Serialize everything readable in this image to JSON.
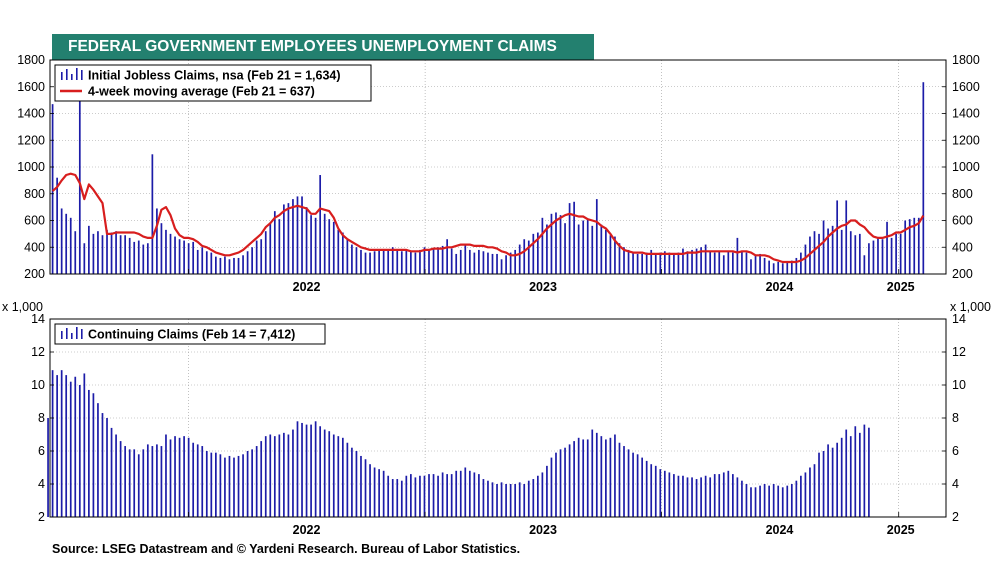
{
  "title": "FEDERAL GOVERNMENT EMPLOYEES UNEMPLOYMENT CLAIMS",
  "source": "Source: LSEG Datastream and © Yardeni Research. Bureau of Labor Statistics.",
  "colors": {
    "bars": "#1c1ca8",
    "moving_average": "#d81e1e",
    "title_bg": "#23806f"
  },
  "chart_data": [
    {
      "type": "bar",
      "title": "",
      "xlabel": "",
      "ylabel": "",
      "ylim": [
        200,
        1800
      ],
      "yticks": [
        200,
        400,
        600,
        800,
        1000,
        1200,
        1400,
        1600,
        1800
      ],
      "x_start": "2021-06-05",
      "x_interval_days": 7,
      "xlim": [
        "2021-06-01",
        "2025-03-15"
      ],
      "xticks": [
        {
          "label": "2022",
          "date": "2022-01-01"
        },
        {
          "label": "2023",
          "date": "2023-01-01"
        },
        {
          "label": "2024",
          "date": "2024-01-01"
        },
        {
          "label": "2025",
          "date": "2025-01-01"
        }
      ],
      "grid": true,
      "legend_position": "top-left",
      "series": [
        {
          "name": "Initial Jobless Claims, nsa (Feb 21 = 1,634)",
          "kind": "bar",
          "values": [
            1470,
            920,
            690,
            650,
            620,
            520,
            1520,
            430,
            560,
            500,
            520,
            490,
            530,
            510,
            520,
            490,
            490,
            470,
            440,
            450,
            420,
            430,
            1095,
            690,
            580,
            530,
            500,
            480,
            460,
            450,
            430,
            440,
            380,
            400,
            370,
            360,
            330,
            320,
            330,
            310,
            320,
            320,
            340,
            370,
            400,
            450,
            460,
            520,
            580,
            670,
            610,
            720,
            730,
            760,
            780,
            780,
            700,
            640,
            620,
            940,
            650,
            610,
            590,
            530,
            510,
            460,
            420,
            400,
            380,
            360,
            360,
            370,
            380,
            380,
            380,
            400,
            380,
            370,
            380,
            370,
            360,
            380,
            400,
            380,
            390,
            400,
            410,
            460,
            390,
            350,
            380,
            420,
            380,
            360,
            380,
            370,
            360,
            350,
            350,
            310,
            340,
            360,
            380,
            420,
            460,
            450,
            500,
            510,
            620,
            570,
            650,
            660,
            640,
            580,
            730,
            740,
            570,
            600,
            610,
            560,
            760,
            570,
            530,
            490,
            480,
            430,
            400,
            380,
            360,
            350,
            350,
            360,
            380,
            350,
            360,
            370,
            360,
            350,
            360,
            390,
            370,
            380,
            390,
            400,
            420,
            370,
            360,
            370,
            340,
            370,
            360,
            470,
            370,
            360,
            310,
            340,
            350,
            320,
            300,
            280,
            290,
            280,
            290,
            300,
            320,
            360,
            420,
            480,
            520,
            500,
            600,
            540,
            560,
            750,
            530,
            750,
            520,
            490,
            500,
            340,
            430,
            450,
            470,
            460,
            590,
            470,
            500,
            500,
            600,
            610,
            620,
            620,
            1634
          ]
        },
        {
          "name": "4-week moving average (Feb 21 = 637)",
          "kind": "line",
          "values": [
            820,
            850,
            900,
            940,
            950,
            940,
            880,
            760,
            870,
            830,
            780,
            730,
            500,
            500,
            510,
            510,
            510,
            510,
            510,
            500,
            480,
            470,
            470,
            560,
            680,
            700,
            640,
            540,
            490,
            470,
            470,
            460,
            440,
            410,
            400,
            380,
            360,
            350,
            340,
            340,
            350,
            360,
            380,
            410,
            440,
            470,
            500,
            550,
            580,
            620,
            640,
            670,
            690,
            700,
            710,
            700,
            690,
            650,
            650,
            690,
            680,
            670,
            620,
            540,
            490,
            460,
            440,
            420,
            400,
            390,
            380,
            380,
            380,
            380,
            380,
            380,
            380,
            380,
            380,
            370,
            370,
            370,
            380,
            380,
            390,
            390,
            390,
            400,
            400,
            410,
            420,
            420,
            420,
            410,
            410,
            410,
            400,
            400,
            390,
            370,
            360,
            340,
            340,
            350,
            370,
            400,
            430,
            460,
            500,
            540,
            570,
            600,
            620,
            640,
            650,
            640,
            630,
            630,
            610,
            600,
            590,
            560,
            540,
            500,
            450,
            410,
            380,
            370,
            360,
            360,
            360,
            350,
            350,
            350,
            350,
            350,
            350,
            350,
            350,
            350,
            360,
            360,
            360,
            370,
            370,
            370,
            370,
            370,
            370,
            370,
            370,
            360,
            370,
            370,
            360,
            340,
            340,
            340,
            330,
            310,
            300,
            290,
            290,
            290,
            290,
            300,
            320,
            350,
            380,
            410,
            440,
            480,
            510,
            540,
            560,
            570,
            600,
            600,
            570,
            550,
            510,
            480,
            470,
            470,
            480,
            490,
            510,
            510,
            530,
            550,
            560,
            580,
            637
          ]
        }
      ]
    },
    {
      "type": "bar",
      "title": "",
      "xlabel": "",
      "ylabel": "x 1,000",
      "ylim": [
        2,
        14
      ],
      "yticks": [
        2,
        4,
        6,
        8,
        10,
        12,
        14
      ],
      "x_start": "2021-05-29",
      "x_interval_days": 7,
      "xlim": [
        "2021-06-01",
        "2025-03-15"
      ],
      "xticks": [
        {
          "label": "2022",
          "date": "2022-01-01"
        },
        {
          "label": "2023",
          "date": "2023-01-01"
        },
        {
          "label": "2024",
          "date": "2024-01-01"
        },
        {
          "label": "2025",
          "date": "2025-01-01"
        }
      ],
      "grid": true,
      "legend_position": "top-left",
      "series": [
        {
          "name": "Continuing Claims (Feb 14 = 7,412)",
          "kind": "bar",
          "values": [
            8.0,
            10.9,
            10.6,
            10.9,
            10.6,
            10.2,
            10.5,
            10.0,
            10.7,
            9.7,
            9.5,
            8.9,
            8.3,
            8.0,
            7.4,
            7.0,
            6.6,
            6.3,
            6.1,
            6.1,
            5.8,
            6.1,
            6.4,
            6.3,
            6.4,
            6.3,
            7.0,
            6.7,
            6.9,
            6.8,
            6.9,
            6.8,
            6.5,
            6.4,
            6.3,
            6.0,
            5.9,
            5.9,
            5.8,
            5.6,
            5.7,
            5.6,
            5.7,
            5.8,
            6.0,
            6.1,
            6.3,
            6.6,
            6.9,
            7.0,
            6.9,
            7.0,
            7.1,
            7.0,
            7.3,
            7.8,
            7.7,
            7.6,
            7.6,
            7.8,
            7.5,
            7.3,
            7.2,
            7.0,
            6.9,
            6.8,
            6.5,
            6.2,
            6.0,
            5.7,
            5.5,
            5.2,
            5.0,
            4.9,
            4.8,
            4.5,
            4.3,
            4.3,
            4.2,
            4.5,
            4.6,
            4.4,
            4.5,
            4.5,
            4.6,
            4.6,
            4.5,
            4.7,
            4.6,
            4.6,
            4.8,
            4.8,
            5.0,
            4.8,
            4.7,
            4.6,
            4.3,
            4.2,
            4.1,
            4.0,
            4.1,
            4.0,
            4.0,
            4.0,
            4.1,
            4.0,
            4.2,
            4.3,
            4.5,
            4.7,
            5.1,
            5.6,
            5.9,
            6.1,
            6.2,
            6.4,
            6.6,
            6.8,
            6.7,
            6.7,
            7.3,
            7.1,
            6.9,
            6.7,
            6.8,
            7.0,
            6.5,
            6.3,
            6.1,
            5.9,
            5.8,
            5.6,
            5.4,
            5.2,
            5.1,
            4.9,
            4.8,
            4.7,
            4.6,
            4.5,
            4.5,
            4.4,
            4.4,
            4.3,
            4.4,
            4.5,
            4.4,
            4.6,
            4.6,
            4.7,
            4.8,
            4.6,
            4.4,
            4.2,
            4.0,
            3.8,
            3.8,
            3.9,
            4.0,
            3.9,
            4.0,
            3.9,
            3.8,
            3.9,
            4.0,
            4.2,
            4.5,
            4.7,
            5.0,
            5.2,
            5.9,
            6.0,
            6.4,
            6.2,
            6.5,
            6.8,
            7.3,
            6.9,
            7.5,
            7.1,
            7.6,
            7.412
          ]
        }
      ]
    }
  ]
}
